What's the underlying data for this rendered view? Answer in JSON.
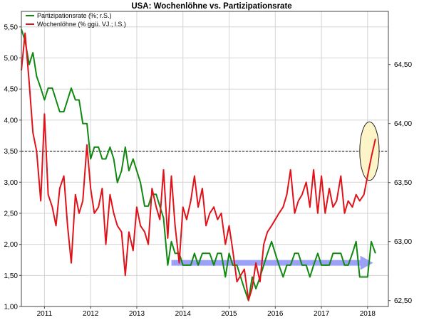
{
  "chart_data": {
    "type": "line",
    "title": "USA: Wochenlöhne vs. Partizipationsrate",
    "legend_position": "top-left",
    "grid": true,
    "x_ticks": [
      "2011",
      "2012",
      "2013",
      "2014",
      "2015",
      "2016",
      "2017",
      "2018"
    ],
    "x_range": [
      2010.5,
      2018.45
    ],
    "left_axis": {
      "ylim": [
        1.0,
        5.75
      ],
      "ticks": [
        "1,00",
        "1,50",
        "2,00",
        "2,50",
        "3,00",
        "3,50",
        "4,00",
        "4,50",
        "5,00",
        "5,50"
      ],
      "tick_values": [
        1.0,
        1.5,
        2.0,
        2.5,
        3.0,
        3.5,
        4.0,
        4.5,
        5.0,
        5.5
      ]
    },
    "right_axis": {
      "ylim": [
        62.45,
        64.95
      ],
      "ticks": [
        "62,50",
        "63,00",
        "63,50",
        "64,00",
        "64,50"
      ],
      "tick_values": [
        62.5,
        63.0,
        63.5,
        64.0,
        64.5
      ]
    },
    "reference_line": {
      "axis": "left",
      "value": 3.5,
      "style": "dashed",
      "color": "#000000"
    },
    "series": [
      {
        "name": "Partizipationsrate (%; r.S.)",
        "axis": "right",
        "color": "#118811",
        "x": [
          2010.5,
          2010.58,
          2010.67,
          2010.75,
          2010.83,
          2010.92,
          2011.0,
          2011.08,
          2011.17,
          2011.25,
          2011.33,
          2011.42,
          2011.5,
          2011.58,
          2011.67,
          2011.75,
          2011.83,
          2011.92,
          2012.0,
          2012.08,
          2012.17,
          2012.25,
          2012.33,
          2012.42,
          2012.5,
          2012.58,
          2012.67,
          2012.75,
          2012.83,
          2012.92,
          2013.0,
          2013.08,
          2013.17,
          2013.25,
          2013.33,
          2013.42,
          2013.5,
          2013.58,
          2013.67,
          2013.75,
          2013.83,
          2013.92,
          2014.0,
          2014.08,
          2014.17,
          2014.25,
          2014.33,
          2014.42,
          2014.5,
          2014.58,
          2014.67,
          2014.75,
          2014.83,
          2014.92,
          2015.0,
          2015.08,
          2015.17,
          2015.25,
          2015.33,
          2015.42,
          2015.5,
          2015.58,
          2015.67,
          2015.75,
          2015.83,
          2015.92,
          2016.0,
          2016.08,
          2016.17,
          2016.25,
          2016.33,
          2016.42,
          2016.5,
          2016.58,
          2016.67,
          2016.75,
          2016.83,
          2016.92,
          2017.0,
          2017.08,
          2017.17,
          2017.25,
          2017.33,
          2017.42,
          2017.5,
          2017.58,
          2017.67,
          2017.75,
          2017.83,
          2017.92,
          2018.0,
          2018.08,
          2018.17
        ],
        "values": [
          64.8,
          64.7,
          64.5,
          64.6,
          64.4,
          64.3,
          64.2,
          64.3,
          64.3,
          64.2,
          64.1,
          64.1,
          64.2,
          64.3,
          64.2,
          64.2,
          64.0,
          64.0,
          63.7,
          63.8,
          63.8,
          63.7,
          63.7,
          63.8,
          63.7,
          63.5,
          63.6,
          63.8,
          63.6,
          63.7,
          63.6,
          63.5,
          63.3,
          63.3,
          63.4,
          63.4,
          63.3,
          63.2,
          62.8,
          63.0,
          62.9,
          62.9,
          62.8,
          62.8,
          62.8,
          62.9,
          62.8,
          62.9,
          62.9,
          62.9,
          62.8,
          62.9,
          62.9,
          62.7,
          62.9,
          62.8,
          62.8,
          62.7,
          62.6,
          62.5,
          62.7,
          62.6,
          62.7,
          62.8,
          62.9,
          63.0,
          62.9,
          62.8,
          62.7,
          62.8,
          62.8,
          62.9,
          62.9,
          62.8,
          62.8,
          62.7,
          62.8,
          62.9,
          62.8,
          62.8,
          62.8,
          62.9,
          62.9,
          62.9,
          62.8,
          62.8,
          62.9,
          63.0,
          62.7,
          62.7,
          62.7,
          63.0,
          62.9
        ]
      },
      {
        "name": "Wochenlöhne (% ggü. VJ.; l.S.)",
        "axis": "left",
        "color": "#e0131b",
        "x": [
          2010.5,
          2010.58,
          2010.67,
          2010.75,
          2010.83,
          2010.92,
          2011.0,
          2011.08,
          2011.17,
          2011.25,
          2011.33,
          2011.42,
          2011.5,
          2011.58,
          2011.67,
          2011.75,
          2011.83,
          2011.92,
          2012.0,
          2012.08,
          2012.17,
          2012.25,
          2012.33,
          2012.42,
          2012.5,
          2012.58,
          2012.67,
          2012.75,
          2012.83,
          2012.92,
          2013.0,
          2013.08,
          2013.17,
          2013.25,
          2013.33,
          2013.42,
          2013.5,
          2013.58,
          2013.67,
          2013.75,
          2013.83,
          2013.92,
          2014.0,
          2014.08,
          2014.17,
          2014.25,
          2014.33,
          2014.42,
          2014.5,
          2014.58,
          2014.67,
          2014.75,
          2014.83,
          2014.92,
          2015.0,
          2015.08,
          2015.17,
          2015.25,
          2015.33,
          2015.42,
          2015.5,
          2015.58,
          2015.67,
          2015.75,
          2015.83,
          2015.92,
          2016.0,
          2016.08,
          2016.17,
          2016.25,
          2016.33,
          2016.42,
          2016.5,
          2016.58,
          2016.67,
          2016.75,
          2016.83,
          2016.92,
          2017.0,
          2017.08,
          2017.17,
          2017.25,
          2017.33,
          2017.42,
          2017.5,
          2017.58,
          2017.67,
          2017.75,
          2017.83,
          2017.92,
          2018.0,
          2018.08,
          2018.17
        ],
        "values": [
          4.8,
          5.4,
          4.6,
          3.8,
          3.5,
          2.7,
          4.1,
          2.8,
          2.6,
          2.3,
          2.9,
          3.1,
          2.3,
          1.7,
          2.8,
          2.5,
          2.7,
          3.6,
          2.9,
          2.5,
          2.6,
          2.9,
          2.0,
          2.8,
          2.5,
          2.3,
          2.2,
          1.5,
          2.2,
          1.9,
          2.6,
          2.3,
          2.2,
          2.0,
          2.9,
          2.6,
          2.4,
          3.2,
          2.1,
          3.1,
          2.3,
          1.7,
          2.6,
          2.4,
          2.7,
          3.1,
          2.6,
          2.9,
          2.3,
          2.5,
          2.6,
          2.4,
          2.5,
          2.0,
          2.3,
          1.9,
          1.4,
          1.5,
          1.6,
          1.1,
          1.3,
          1.7,
          1.4,
          2.0,
          2.2,
          2.3,
          2.4,
          2.5,
          2.6,
          2.8,
          3.2,
          2.5,
          2.7,
          2.8,
          3.0,
          2.6,
          3.2,
          2.5,
          3.1,
          2.5,
          2.9,
          2.6,
          2.7,
          3.1,
          2.5,
          2.7,
          2.6,
          2.8,
          2.7,
          2.8,
          3.1,
          3.4,
          3.7
        ]
      }
    ],
    "annotations": [
      {
        "type": "arrow",
        "color": "#8a90f5",
        "axis": "right",
        "y": 62.82,
        "x_start": 2013.75,
        "x_end": 2018.12
      },
      {
        "type": "ellipse",
        "fill": "#fdf5c8",
        "stroke": "#222222",
        "axis": "left",
        "cx": 2018.04,
        "cy": 3.5,
        "rx_years": 0.21,
        "ry_units": 0.47
      }
    ]
  }
}
